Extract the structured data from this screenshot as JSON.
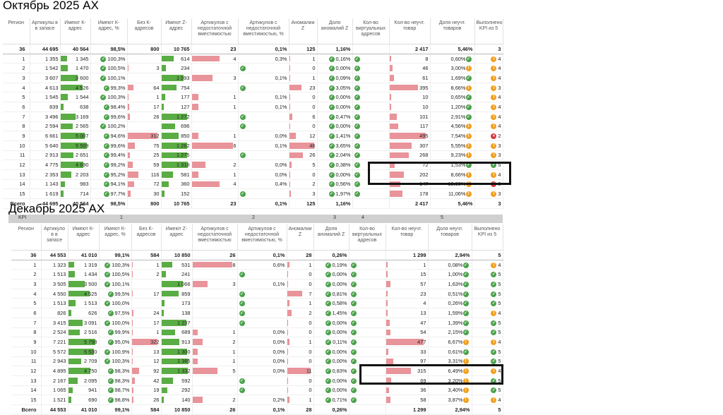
{
  "oct": {
    "title": "Октябрь 2025 АХ",
    "headers": [
      "Регион",
      "Артикулы в в запасе",
      "Имеют К-адрес",
      "Имеют К-адрес, %",
      "Без К-адресов",
      "Имеют Z-адрес",
      "Артикулов с недостаточной вместимостью",
      "Артикулов с недостаточной вместимостью, %",
      "Аномалии Z",
      "Доля аномалий Z",
      "Кол-во виртуальных адресов",
      "Кол-во неучт. товар",
      "Доля неучт. товаров",
      "Выполнено KPI из 5"
    ],
    "rows": [
      [
        "36",
        "44 695",
        "40 564",
        "98,5%",
        "800",
        "10 765",
        "23",
        "0,1%",
        "125",
        "1,16%",
        "",
        "2 417",
        "5,46%",
        "3"
      ],
      [
        "1",
        "1 355",
        "1 345",
        "100,3%",
        "",
        "614",
        "4",
        "0,3%",
        "1",
        "0,16%",
        "",
        "8",
        "0,60%",
        "4"
      ],
      [
        "2",
        "1 542",
        "1 470",
        "100,5%",
        "3",
        "234",
        "",
        "",
        "0",
        "0,00%",
        "",
        "46",
        "3,00%",
        "4"
      ],
      [
        "3",
        "3 607",
        "3 600",
        "100,1%",
        "",
        "1 093",
        "3",
        "0,1%",
        "1",
        "0,09%",
        "",
        "61",
        "1,69%",
        "4"
      ],
      [
        "4",
        "4 613",
        "4 526",
        "99,3%",
        "64",
        "754",
        "",
        "",
        "23",
        "3,05%",
        "",
        "395",
        "8,66%",
        "3"
      ],
      [
        "5",
        "1 545",
        "1 544",
        "100,3%",
        "1",
        "177",
        "1",
        "0,1%",
        "0",
        "0,00%",
        "",
        "10",
        "0,65%",
        "4"
      ],
      [
        "6",
        "839",
        "638",
        "98,4%",
        "17",
        "127",
        "1",
        "0,1%",
        "0",
        "0,00%",
        "",
        "10",
        "1,20%",
        "4"
      ],
      [
        "7",
        "3 496",
        "3 169",
        "99,6%",
        "26",
        "1 272",
        "",
        "",
        "6",
        "0,47%",
        "",
        "101",
        "2,91%",
        "4"
      ],
      [
        "8",
        "2 594",
        "2 565",
        "100,2%",
        "",
        "696",
        "",
        "",
        "0",
        "0,00%",
        "",
        "117",
        "4,56%",
        "4"
      ],
      [
        "9",
        "6 661",
        "5 007",
        "94,6%",
        "312",
        "850",
        "1",
        "0,0%",
        "12",
        "1,41%",
        "",
        "495",
        "7,54%",
        "2"
      ],
      [
        "10",
        "5 640",
        "5 509",
        "99,6%",
        "75",
        "1 262",
        "6",
        "0,1%",
        "46",
        "3,65%",
        "",
        "307",
        "5,55%",
        "3"
      ],
      [
        "11",
        "2 913",
        "2 651",
        "99,4%",
        "25",
        "1 275",
        "",
        "",
        "26",
        "2,04%",
        "",
        "268",
        "9,23%",
        "3"
      ],
      [
        "12",
        "4 775",
        "4 690",
        "99,2%",
        "59",
        "1 318",
        "2",
        "0,0%",
        "5",
        "0,38%",
        "",
        "72",
        "1,53%",
        "5"
      ],
      [
        "13",
        "2 353",
        "2 203",
        "95,2%",
        "116",
        "581",
        "1",
        "0,0%",
        "0",
        "0,00%",
        "",
        "202",
        "8,66%",
        "4"
      ],
      [
        "14",
        "1 143",
        "983",
        "94,1%",
        "72",
        "360",
        "4",
        "0,4%",
        "2",
        "0,56%",
        "",
        "147",
        "12,99%",
        "2"
      ],
      [
        "15",
        "1 619",
        "714",
        "97,7%",
        "30",
        "152",
        "",
        "",
        "3",
        "1,97%",
        "",
        "178",
        "11,06%",
        "3"
      ],
      [
        "Всего",
        "44 695",
        "40 564",
        "98,5%",
        "800",
        "10 765",
        "23",
        "0,1%",
        "125",
        "1,16%",
        "",
        "2 417",
        "5,46%",
        "3"
      ]
    ]
  },
  "dec": {
    "title": "Декабрь 2025 АХ",
    "kpi_label": "KPI",
    "kpi_nums": [
      "1",
      "2",
      "3",
      "4",
      "5"
    ],
    "headers": [
      "Регион",
      "Артикуло в в запасе",
      "Имеют К-адрес",
      "Имеют К-адрес, %",
      "Без К-адресов",
      "Имеют Z-адрес",
      "Артикулов с недостаточной вместимостью",
      "Артикулов с недостаточной вместимостью, %",
      "Аномалии Z",
      "Доля аномалий Z",
      "Кол-во виртуальных адресов",
      "Кол-во неучт. товар",
      "Доля неучт. товаров",
      "Выполнено KPI из 5"
    ],
    "rows": [
      [
        "36",
        "44 553",
        "41 010",
        "99,1%",
        "584",
        "10 850",
        "26",
        "0,1%",
        "28",
        "0,26%",
        "",
        "1 299",
        "2,94%",
        "5"
      ],
      [
        "1",
        "1 323",
        "1 319",
        "100,3%",
        "1",
        "531",
        "8",
        "0,6%",
        "1",
        "0,19%",
        "",
        "1",
        "0,08%",
        "4"
      ],
      [
        "2",
        "1 513",
        "1 434",
        "100,5%",
        "2",
        "241",
        "",
        "",
        "0",
        "0,00%",
        "",
        "15",
        "1,00%",
        "5"
      ],
      [
        "3",
        "3 505",
        "3 500",
        "100,1%",
        "",
        "1 066",
        "3",
        "0,1%",
        "0",
        "0,00%",
        "",
        "57",
        "1,63%",
        "5"
      ],
      [
        "4",
        "4 550",
        "4 525",
        "99,5%",
        "17",
        "859",
        "",
        "",
        "7",
        "0,81%",
        "",
        "23",
        "0,51%",
        "5"
      ],
      [
        "5",
        "1 513",
        "1 513",
        "100,0%",
        "",
        "173",
        "",
        "",
        "1",
        "0,58%",
        "",
        "4",
        "0,26%",
        "5"
      ],
      [
        "6",
        "826",
        "626",
        "97,5%",
        "24",
        "138",
        "",
        "",
        "2",
        "1,45%",
        "",
        "13",
        "1,59%",
        "4"
      ],
      [
        "7",
        "3 415",
        "3 091",
        "100,0%",
        "17",
        "1 237",
        "",
        "",
        "0",
        "0,00%",
        "",
        "47",
        "1,39%",
        "5"
      ],
      [
        "8",
        "2 524",
        "2 516",
        "99,9%",
        "1",
        "689",
        "1",
        "0,0%",
        "0",
        "0,00%",
        "",
        "54",
        "2,15%",
        "5"
      ],
      [
        "9",
        "7 221",
        "5 798",
        "95,0%",
        "322",
        "913",
        "2",
        "0,0%",
        "1",
        "0,11%",
        "",
        "477",
        "6,67%",
        "4"
      ],
      [
        "10",
        "5 572",
        "5 530",
        "100,9%",
        "13",
        "1 300",
        "1",
        "0,0%",
        "0",
        "0,00%",
        "",
        "33",
        "0,61%",
        "5"
      ],
      [
        "11",
        "2 943",
        "2 709",
        "100,3%",
        "12",
        "1 365",
        "1",
        "0,0%",
        "0",
        "0,00%",
        "",
        "97",
        "3,31%",
        "5"
      ],
      [
        "12",
        "4 895",
        "4 750",
        "98,3%",
        "92",
        "1 332",
        "5",
        "0,0%",
        "11",
        "0,83%",
        "",
        "315",
        "6,49%",
        "4"
      ],
      [
        "13",
        "2 167",
        "2 095",
        "98,3%",
        "42",
        "592",
        "",
        "",
        "0",
        "0,00%",
        "",
        "69",
        "3,20%",
        "5"
      ],
      [
        "14",
        "1 065",
        "941",
        "98,7%",
        "19",
        "292",
        "",
        "",
        "0",
        "0,00%",
        "",
        "36",
        "3,40%",
        "5"
      ],
      [
        "15",
        "1 521",
        "690",
        "98,8%",
        "26",
        "140",
        "2",
        "0,2%",
        "1",
        "0,71%",
        "",
        "58",
        "3,87%",
        "4"
      ],
      [
        "Всего",
        "44 553",
        "41 010",
        "99,1%",
        "584",
        "10 850",
        "26",
        "0,1%",
        "28",
        "0,26%",
        "",
        "1 299",
        "2,94%",
        "5"
      ]
    ]
  },
  "colors": {
    "green": "#5aac44",
    "pink": "#e8949a",
    "ok": "#4ca24c",
    "warn": "#f0a020",
    "bad": "#d9363e"
  }
}
